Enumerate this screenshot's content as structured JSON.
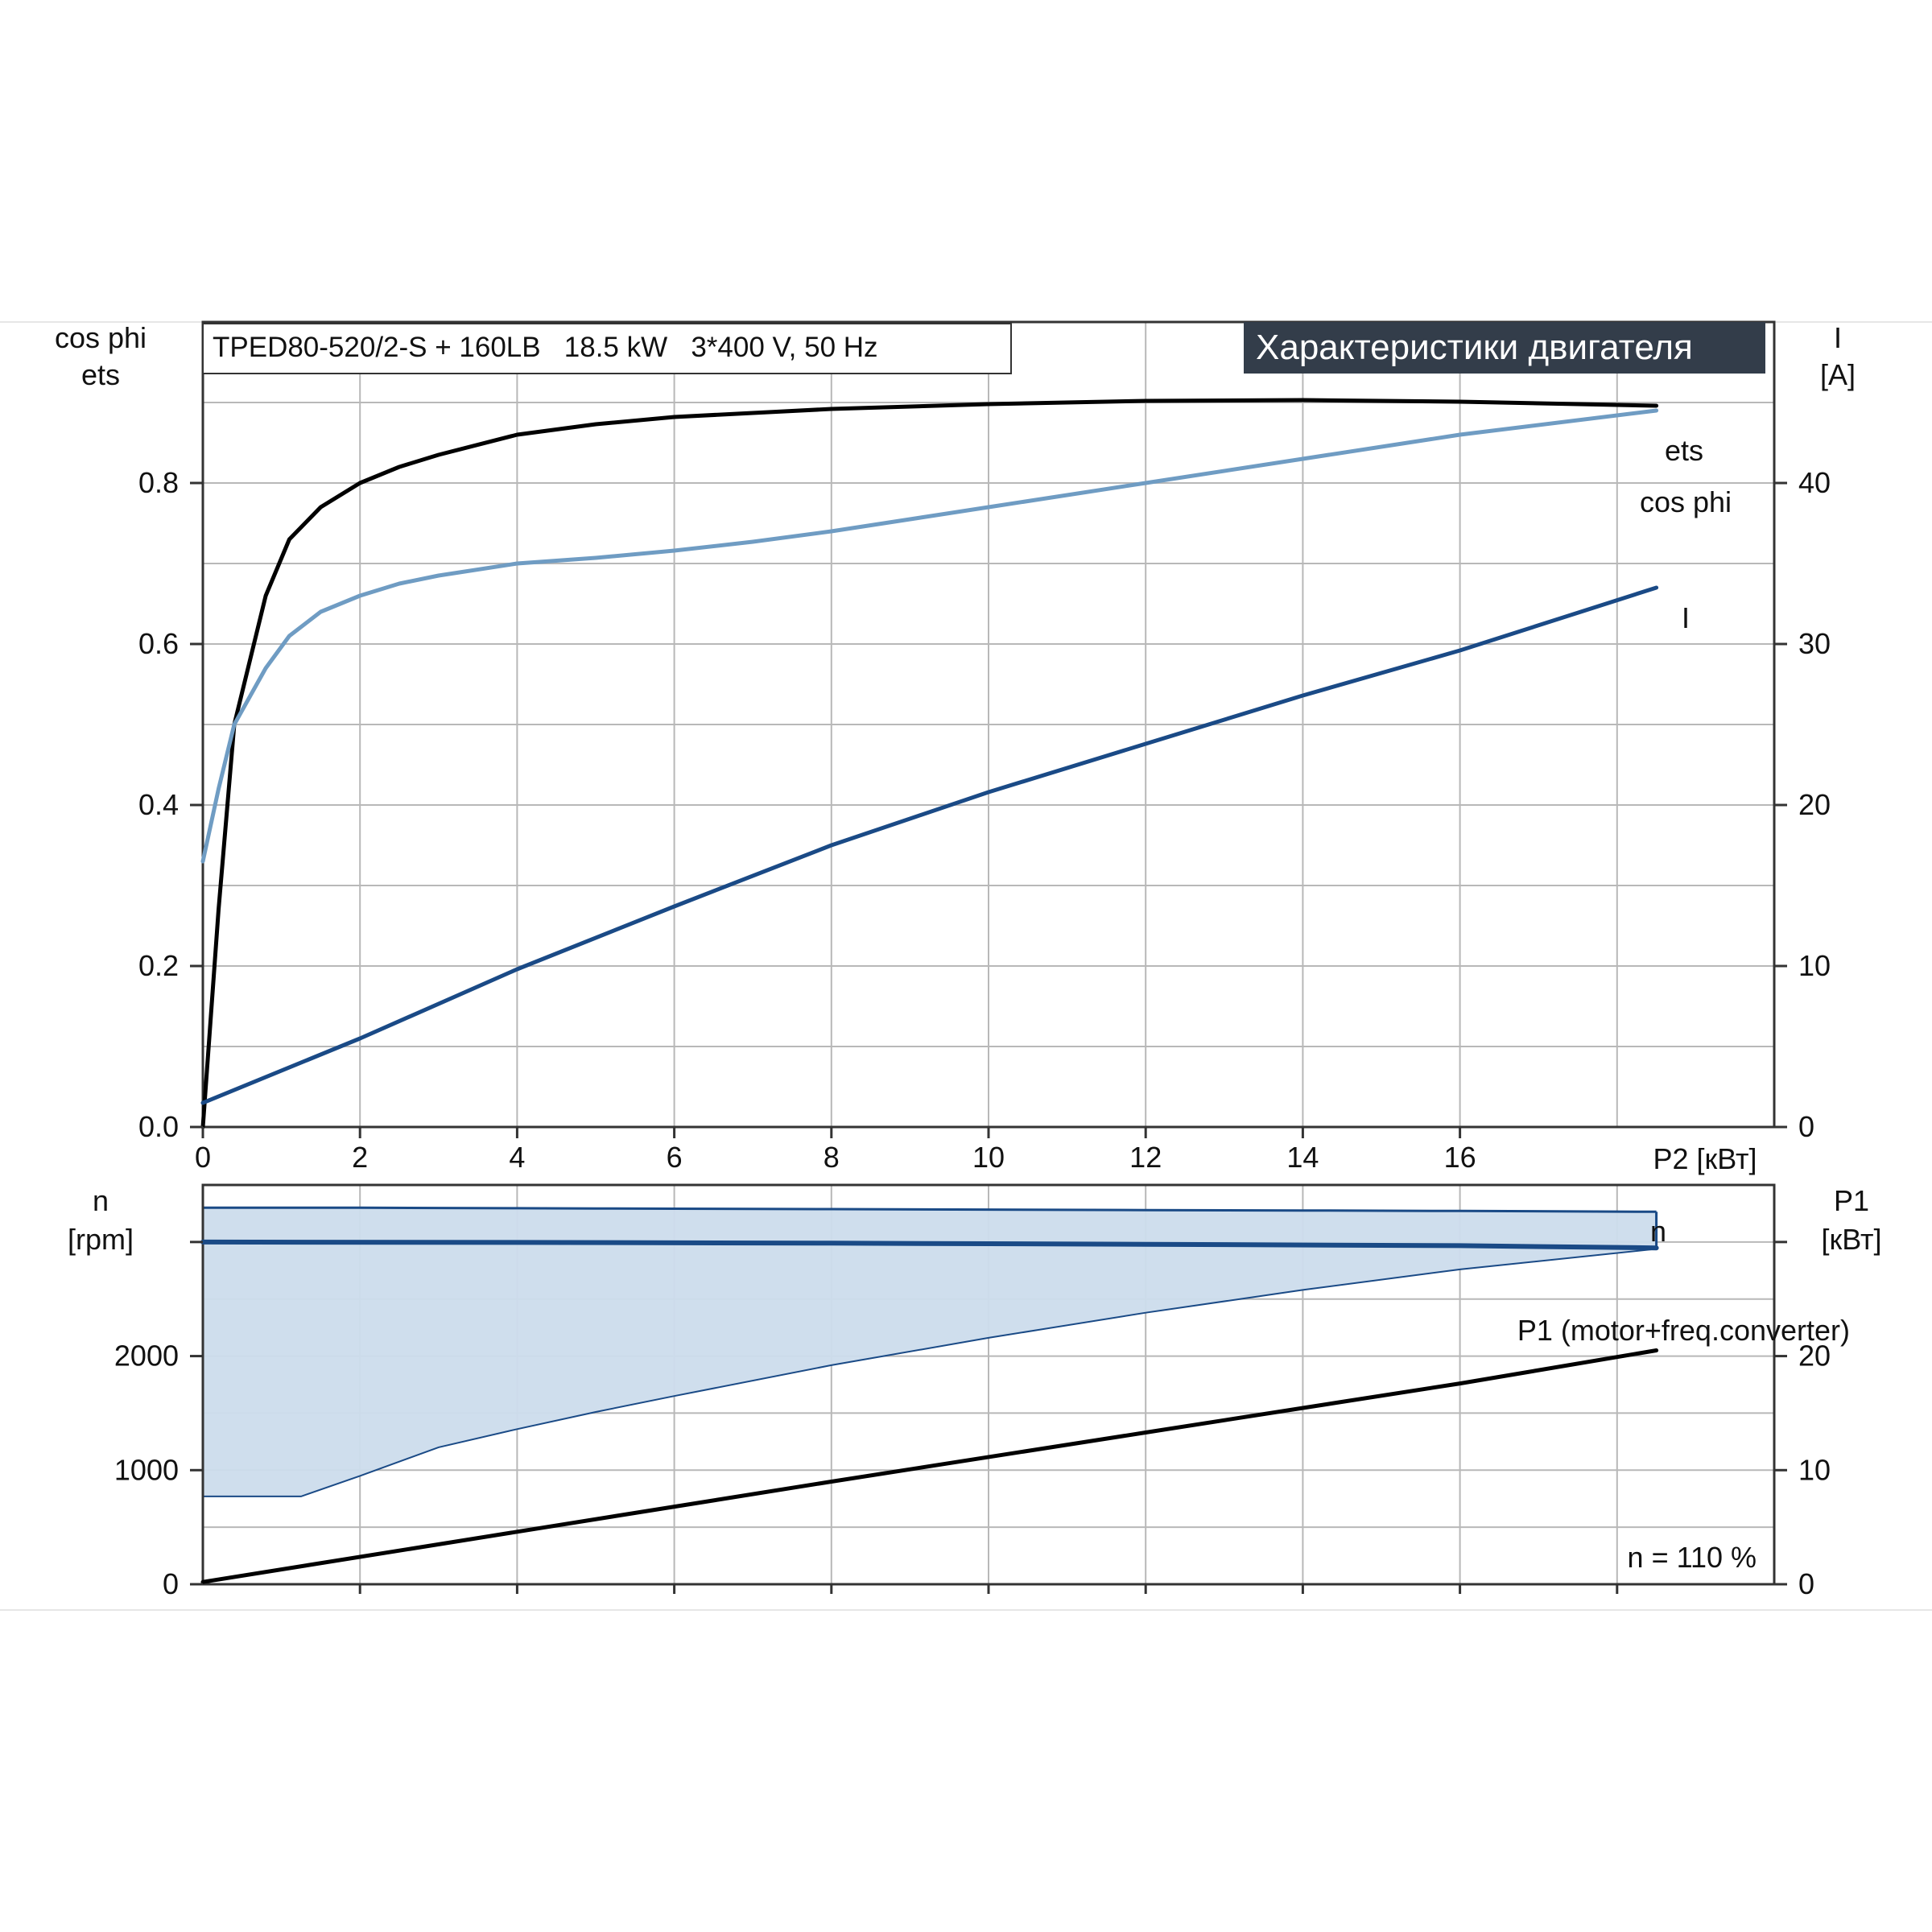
{
  "header": {
    "title": "Характеристики двигателя",
    "model": "TPED80-520/2-S + 160LB   18.5 kW   3*400 V, 50 Hz"
  },
  "colors": {
    "ets": "#000000",
    "cosphi": "#6f9cc3",
    "current": "#1a4a86",
    "speed_fill": "#ccdcec",
    "speed_line": "#1a4a86",
    "p1": "#000000",
    "grid": "#b8b8b8",
    "header_bg": "#333d4a"
  },
  "top_chart": {
    "y_left_label_1": "cos phi",
    "y_left_label_2": "ets",
    "y_right_label_1": "I",
    "y_right_label_2": "[A]",
    "x_label": "P2 [кВт]",
    "x_ticks": [
      "0",
      "2",
      "4",
      "6",
      "8",
      "10",
      "12",
      "14",
      "16"
    ],
    "y_left_ticks": [
      "0.0",
      "0.2",
      "0.4",
      "0.6",
      "0.8"
    ],
    "y_right_ticks": [
      "0",
      "10",
      "20",
      "30",
      "40"
    ],
    "series_labels": {
      "ets": "ets",
      "cosphi": "cos phi",
      "current": "I"
    }
  },
  "bottom_chart": {
    "y_left_label_1": "n",
    "y_left_label_2": "[rpm]",
    "y_right_label_1": "P1",
    "y_right_label_2": "[кВт]",
    "y_left_ticks": [
      "0",
      "1000",
      "2000"
    ],
    "y_right_ticks": [
      "0",
      "10",
      "20"
    ],
    "series_labels": {
      "n": "n",
      "p1": "P1 (motor+freq.converter)"
    },
    "speed_note": "n = 110 %"
  },
  "chart_data": [
    {
      "type": "line",
      "xlabel": "P2 [кВт]",
      "xlim": [
        0,
        20
      ],
      "ylim_left": [
        0,
        1.0
      ],
      "ylim_right": [
        0,
        50
      ],
      "ylabel_left": "cos phi / ets",
      "ylabel_right": "I [A]",
      "grid": true,
      "series": [
        {
          "name": "ets",
          "axis": "left",
          "x": [
            0,
            0.2,
            0.4,
            0.8,
            1.1,
            1.5,
            2,
            2.5,
            3,
            4,
            5,
            6,
            7,
            8,
            10,
            12,
            14,
            16,
            18.5
          ],
          "y": [
            0.0,
            0.27,
            0.5,
            0.66,
            0.73,
            0.77,
            0.8,
            0.82,
            0.835,
            0.86,
            0.873,
            0.882,
            0.887,
            0.892,
            0.898,
            0.902,
            0.903,
            0.901,
            0.896
          ]
        },
        {
          "name": "cos phi",
          "axis": "left",
          "x": [
            0,
            0.2,
            0.4,
            0.8,
            1.1,
            1.5,
            2,
            2.5,
            3,
            4,
            5,
            6,
            7,
            8,
            10,
            12,
            14,
            16,
            18.5
          ],
          "y": [
            0.33,
            0.42,
            0.5,
            0.57,
            0.61,
            0.64,
            0.66,
            0.675,
            0.685,
            0.7,
            0.707,
            0.716,
            0.727,
            0.74,
            0.77,
            0.8,
            0.83,
            0.86,
            0.89
          ]
        },
        {
          "name": "I",
          "axis": "right",
          "x": [
            0,
            2,
            4,
            6,
            8,
            10,
            12,
            14,
            16,
            18.5
          ],
          "y": [
            1.5,
            5.5,
            9.8,
            13.7,
            17.5,
            20.8,
            23.8,
            26.8,
            29.6,
            33.5
          ]
        }
      ]
    },
    {
      "type": "area",
      "xlabel": "P2 [кВт]",
      "xlim": [
        0,
        20
      ],
      "ylim_left": [
        0,
        3500
      ],
      "ylim_right": [
        0,
        35
      ],
      "ylabel_left": "n [rpm]",
      "ylabel_right": "P1 [кВт]",
      "grid": true,
      "speed_range": {
        "x": [
          0,
          1.25,
          2,
          3,
          4,
          5,
          6,
          8,
          10,
          12,
          14,
          16,
          18.5
        ],
        "upper": [
          3300,
          3300,
          3300,
          3298,
          3296,
          3294,
          3292,
          3288,
          3284,
          3280,
          3276,
          3272,
          3265
        ],
        "lower": [
          770,
          770,
          950,
          1200,
          1360,
          1510,
          1650,
          1920,
          2160,
          2380,
          2580,
          2760,
          2940
        ]
      },
      "series": [
        {
          "name": "n",
          "axis": "left",
          "x": [
            0,
            4,
            8,
            12,
            16,
            18.5
          ],
          "y": [
            3000,
            2996,
            2990,
            2980,
            2968,
            2948
          ]
        },
        {
          "name": "P1 (motor+freq.converter)",
          "axis": "right",
          "x": [
            0,
            4,
            8,
            12,
            16,
            18.5
          ],
          "y": [
            0.2,
            4.6,
            9.0,
            13.3,
            17.6,
            20.5
          ]
        }
      ]
    }
  ]
}
